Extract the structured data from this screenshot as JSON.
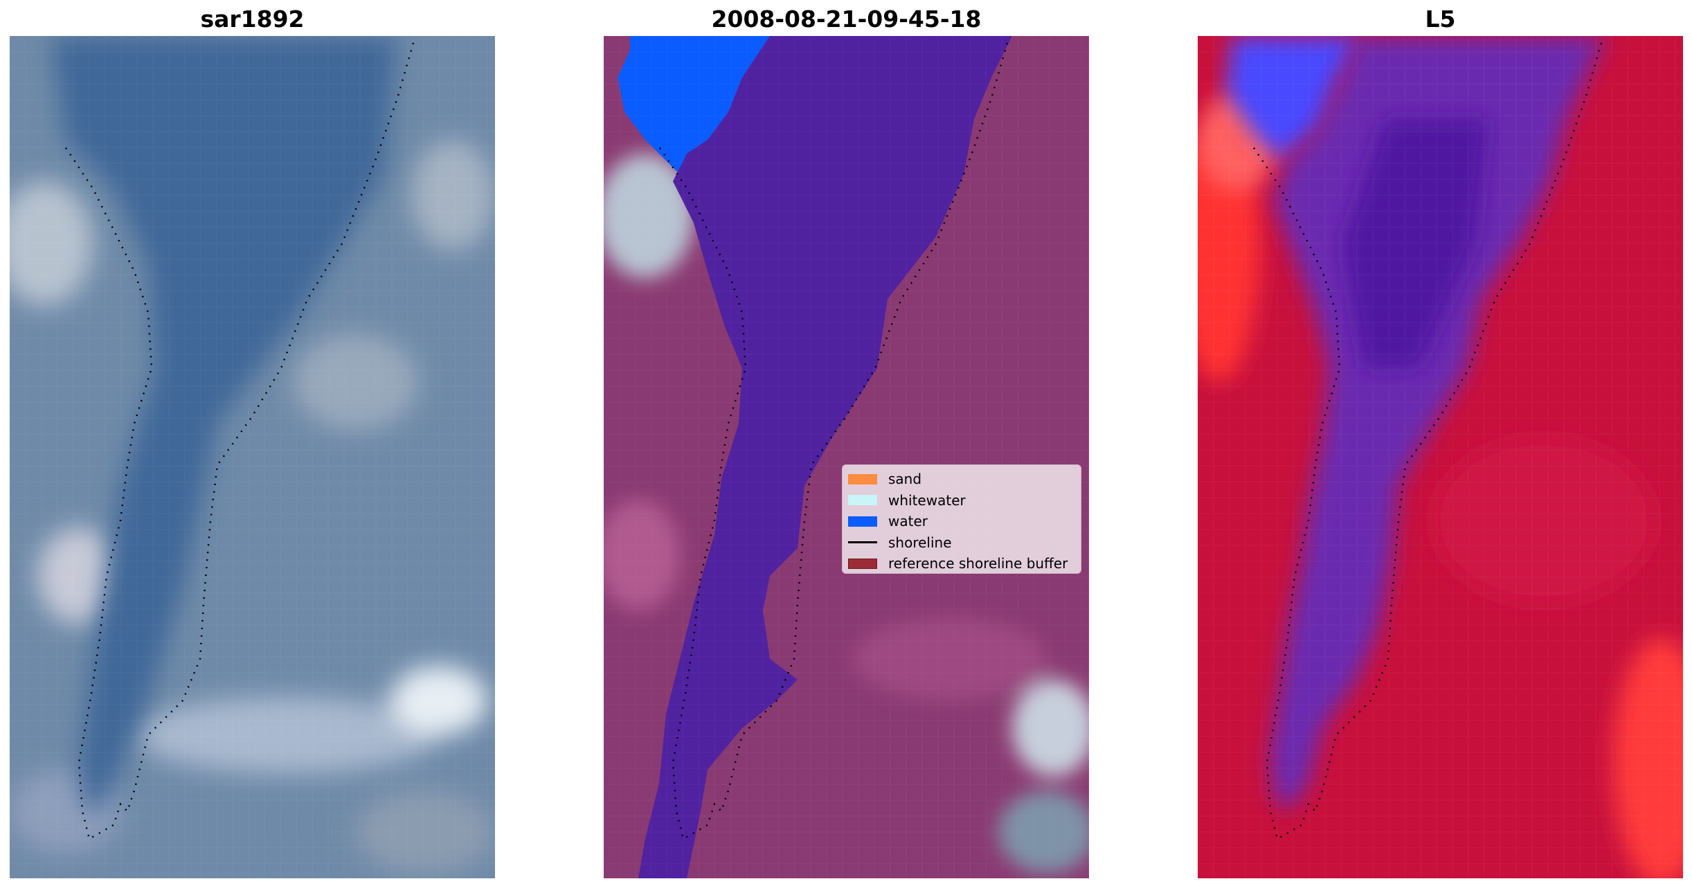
{
  "panels": [
    {
      "title": "sar1892",
      "kind": "rgb"
    },
    {
      "title": "2008-08-21-09-45-18",
      "kind": "classified"
    },
    {
      "title": "L5",
      "kind": "index"
    }
  ],
  "legend": {
    "items": [
      {
        "label": "sand",
        "type": "patch",
        "color": "#ff8c3f"
      },
      {
        "label": "whitewater",
        "type": "patch",
        "color": "#c9f4f8"
      },
      {
        "label": "water",
        "type": "patch",
        "color": "#0a5cff"
      },
      {
        "label": "shoreline",
        "type": "line",
        "color": "#000000"
      },
      {
        "label": "reference shoreline buffer",
        "type": "patch",
        "color": "#9b2b35"
      }
    ]
  },
  "colors": {
    "rgb_water": "#3f6898",
    "rgb_land": "#6f8aa8",
    "classified_water": "#5022a0",
    "classified_ocean": "#0a5cff",
    "classified_land": "#8a3a72",
    "index_land": "#c8103c",
    "index_water": "#5a1aa8",
    "index_blue": "#4040ff"
  }
}
